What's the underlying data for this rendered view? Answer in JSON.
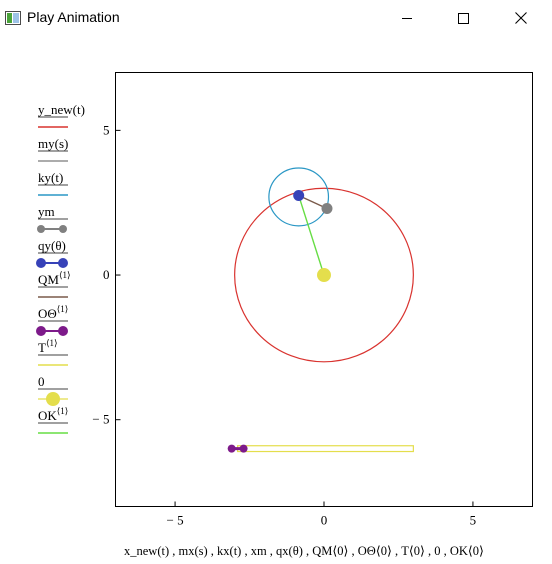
{
  "window": {
    "title": "Play Animation",
    "minimize_glyph": "minimize-icon",
    "maximize_glyph": "maximize-icon",
    "close_glyph": "close-icon"
  },
  "plot": {
    "x_ticks": [
      "− 5",
      "0",
      "5"
    ],
    "y_ticks": [
      "5",
      "0",
      "− 5"
    ],
    "xlabel": "x_new(t) , mx(s) , kx(t) , xm , qx(θ) , QM⟨0⟩ , OΘ⟨0⟩ , T⟨0⟩ , 0 , OK⟨0⟩"
  },
  "legend": [
    {
      "label": "y_new(t)",
      "sup": "",
      "color": "#d9332f",
      "style": "line"
    },
    {
      "label": "my(s)",
      "sup": "",
      "color": "#909090",
      "style": "line"
    },
    {
      "label": "ky(t)",
      "sup": "",
      "color": "#2a97c5",
      "style": "line"
    },
    {
      "label": "ym",
      "sup": "",
      "color": "#808080",
      "style": "dots"
    },
    {
      "label": "qy(θ)",
      "sup": "",
      "color": "#3742b8",
      "style": "dots"
    },
    {
      "label": "QM",
      "sup": "⟨1⟩",
      "color": "#7a5a4a",
      "style": "line"
    },
    {
      "label": "OΘ",
      "sup": "⟨1⟩",
      "color": "#7d1a8a",
      "style": "dots"
    },
    {
      "label": "T",
      "sup": "⟨1⟩",
      "color": "#e4de4c",
      "style": "line"
    },
    {
      "label": "0",
      "sup": "",
      "color": "#e4de4c",
      "style": "bigdot"
    },
    {
      "label": "OK",
      "sup": "⟨1⟩",
      "color": "#66dd44",
      "style": "line"
    }
  ],
  "chart_data": {
    "type": "scatter",
    "xlim": [
      -7,
      7
    ],
    "ylim": [
      -8,
      7
    ],
    "x_ticks": [
      -5,
      0,
      5
    ],
    "y_ticks": [
      -5,
      0,
      5
    ],
    "grid": false,
    "legend_position": "left",
    "series": [
      {
        "name": "y_new(t)",
        "kind": "circle",
        "center": [
          0,
          0
        ],
        "radius": 3,
        "color": "#d9332f"
      },
      {
        "name": "ky(t)",
        "kind": "circle",
        "center": [
          -0.85,
          2.7
        ],
        "radius": 1,
        "color": "#2a97c5"
      },
      {
        "name": "qy(θ)",
        "kind": "point",
        "x": -0.85,
        "y": 2.75,
        "color": "#3742b8"
      },
      {
        "name": "ym",
        "kind": "point",
        "x": 0.1,
        "y": 2.3,
        "color": "#808080"
      },
      {
        "name": "QM⟨1⟩",
        "kind": "segment",
        "x": [
          -0.85,
          0.1
        ],
        "y": [
          2.75,
          2.3
        ],
        "color": "#7a5a4a"
      },
      {
        "name": "OK⟨1⟩",
        "kind": "segment",
        "x": [
          0,
          -0.85
        ],
        "y": [
          0,
          2.75
        ],
        "color": "#66dd44"
      },
      {
        "name": "0",
        "kind": "point",
        "x": 0,
        "y": 0,
        "color": "#e4de4c"
      },
      {
        "name": "T⟨1⟩",
        "kind": "rect",
        "x": [
          -2.9,
          3.0
        ],
        "y": [
          -6.1,
          -5.9
        ],
        "color": "#e4de4c"
      },
      {
        "name": "OΘ⟨1⟩",
        "kind": "segment",
        "x": [
          -3.1,
          -2.7
        ],
        "y": [
          -6.0,
          -6.0
        ],
        "color": "#7d1a8a"
      }
    ]
  }
}
